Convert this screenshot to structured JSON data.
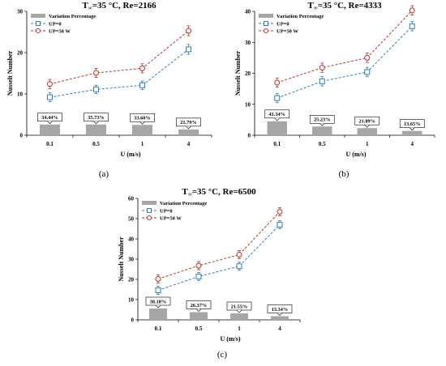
{
  "chart_data": [
    {
      "type": "line",
      "caption": "(a)",
      "title": "T",
      "title_sub": "∞",
      "title_rest": "=35 °C, Re=2166",
      "xlabel": "U (m/s)",
      "ylabel": "Nusselt Number",
      "categories": [
        "0.1",
        "0.5",
        "1",
        "4"
      ],
      "ylim": [
        0,
        30
      ],
      "yticks": [
        "0",
        "10",
        "20",
        "30"
      ],
      "grid": false,
      "legend": "top-left",
      "bars": {
        "name": "Variation Percentage",
        "values": [
          2.6,
          2.6,
          2.5,
          1.4
        ],
        "labels": [
          "34.44%",
          "35.73%",
          "33.60%",
          "21.79%"
        ]
      },
      "series": [
        {
          "name": "UP=0",
          "values": [
            9.2,
            11.1,
            12.1,
            20.8
          ],
          "errors": [
            1.1,
            1.0,
            1.0,
            1.2
          ]
        },
        {
          "name": "UP=50 W",
          "values": [
            12.4,
            15.1,
            16.2,
            25.3
          ],
          "errors": [
            1.1,
            1.1,
            1.1,
            1.2
          ]
        }
      ],
      "colors": {
        "UP=0": "#2e7fc1",
        "UP=50 W": "#c0302b",
        "bars": "#a6a6a6"
      }
    },
    {
      "type": "line",
      "caption": "(b)",
      "title": "T",
      "title_sub": "∞",
      "title_rest": "=35 °C, Re=4333",
      "xlabel": "U (m/s)",
      "ylabel": "Nusselt Number",
      "categories": [
        "0.1",
        "0.5",
        "1",
        "4"
      ],
      "ylim": [
        0,
        40
      ],
      "yticks": [
        "0",
        "10",
        "20",
        "30",
        "40"
      ],
      "grid": false,
      "legend": "top-left",
      "bars": {
        "name": "Variation Percentage",
        "values": [
          4.5,
          2.8,
          2.3,
          1.4
        ],
        "labels": [
          "41.34%",
          "25.23%",
          "21.89%",
          "13.65%"
        ]
      },
      "series": [
        {
          "name": "UP=0",
          "values": [
            12.0,
            17.4,
            20.4,
            35.2
          ],
          "errors": [
            1.5,
            1.5,
            1.5,
            1.5
          ]
        },
        {
          "name": "UP=50 W",
          "values": [
            17.0,
            21.8,
            25.0,
            40.3
          ],
          "errors": [
            1.5,
            1.5,
            1.5,
            1.5
          ]
        }
      ],
      "colors": {
        "UP=0": "#2e7fc1",
        "UP=50 W": "#c0302b",
        "bars": "#a6a6a6"
      }
    },
    {
      "type": "line",
      "caption": "(c)",
      "title": "T",
      "title_sub": "∞",
      "title_rest": "=35 °C, Re=6500",
      "xlabel": "U (m/s)",
      "ylabel": "Nusselt Number",
      "categories": [
        "0.1",
        "0.5",
        "1",
        "4"
      ],
      "ylim": [
        0,
        60
      ],
      "yticks": [
        "0",
        "10",
        "20",
        "30",
        "40",
        "50",
        "60"
      ],
      "grid": false,
      "legend": "top-left",
      "bars": {
        "name": "Variation Percentage",
        "values": [
          5.6,
          3.8,
          3.2,
          1.8
        ],
        "labels": [
          "38.18%",
          "26.37%",
          "21.55%",
          "13.34%"
        ]
      },
      "series": [
        {
          "name": "UP=0",
          "values": [
            14.6,
            21.4,
            26.5,
            47.0
          ],
          "errors": [
            2.0,
            2.0,
            2.0,
            2.0
          ]
        },
        {
          "name": "UP=50 W",
          "values": [
            20.2,
            26.8,
            32.2,
            53.4
          ],
          "errors": [
            2.0,
            2.0,
            2.0,
            2.0
          ]
        }
      ],
      "colors": {
        "UP=0": "#2e7fc1",
        "UP=50 W": "#c0302b",
        "bars": "#a6a6a6"
      }
    }
  ]
}
